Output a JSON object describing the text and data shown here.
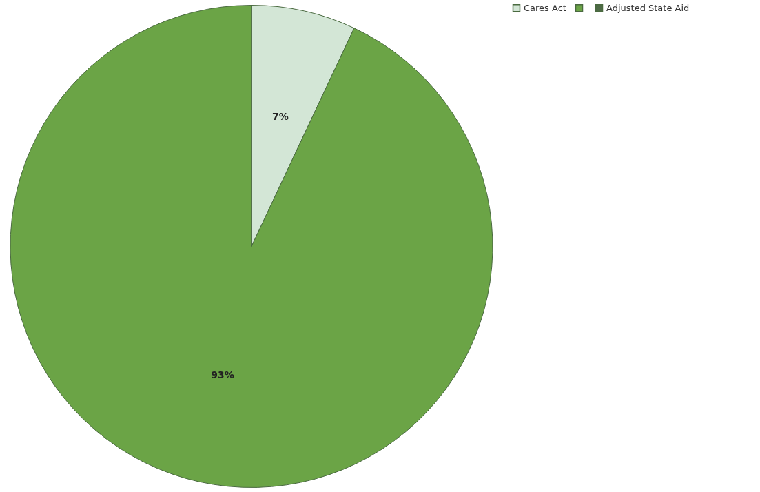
{
  "chart_data": {
    "type": "pie",
    "categories": [
      "Cares Act",
      null,
      "Adjusted State Aid"
    ],
    "values": [
      7,
      93,
      0
    ],
    "colors": [
      "#d3e6d6",
      "#6ba446",
      "#4e6b46"
    ],
    "value_labels": [
      "7%",
      "93%",
      null
    ],
    "legend": "right"
  }
}
